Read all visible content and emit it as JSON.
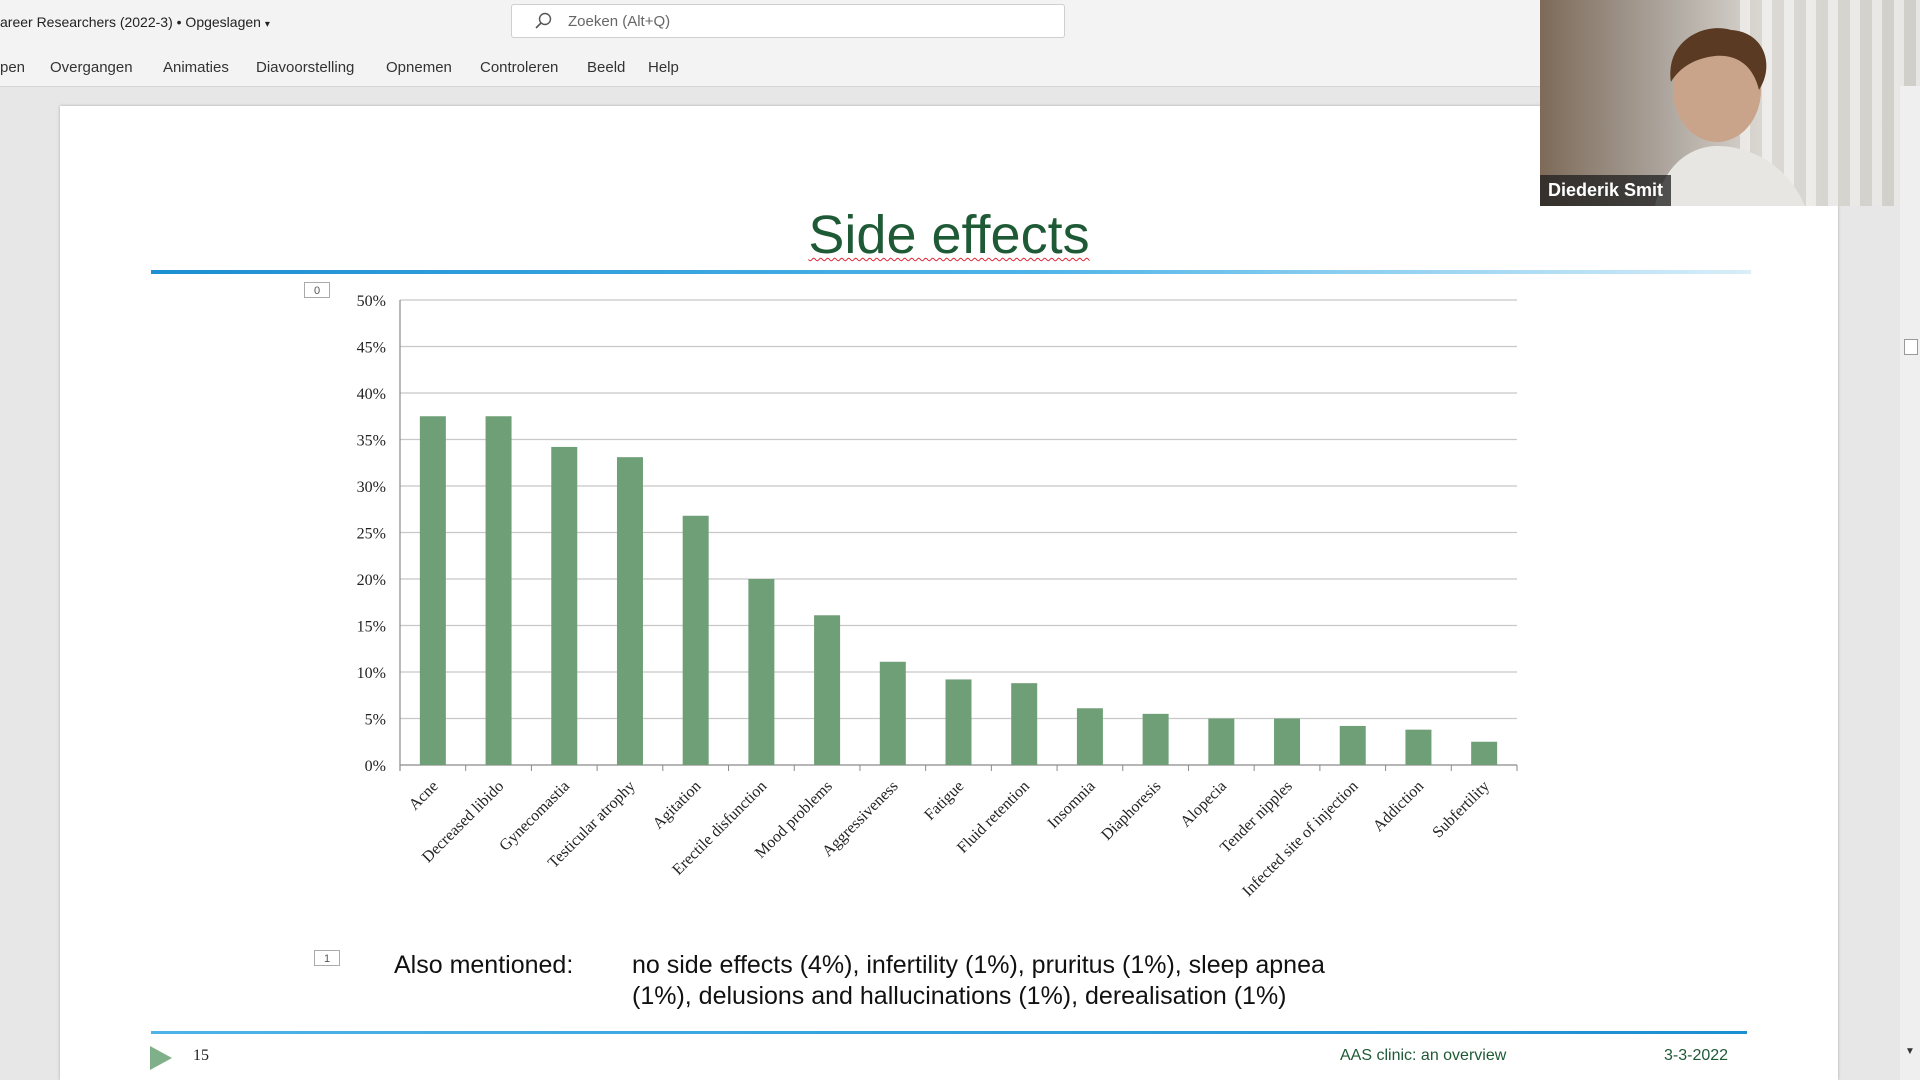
{
  "app": {
    "doc_title": "areer Researchers (2022-3) • Opgeslagen",
    "search_placeholder": "Zoeken (Alt+Q)",
    "tabs": [
      "pen",
      "Overgangen",
      "Animaties",
      "Diavoorstelling",
      "Opnemen",
      "Controleren",
      "Beeld",
      "Help"
    ]
  },
  "slide": {
    "title": "Side effects",
    "marker0": "0",
    "marker1": "1",
    "also_label": "Also mentioned:",
    "also_line1": "no side effects (4%), infertility (1%), pruritus (1%), sleep apnea",
    "also_line2": "(1%),  delusions and hallucinations (1%), derealisation (1%)",
    "number": "15",
    "footer": "AAS clinic: an overview",
    "date": "3-3-2022"
  },
  "webcam": {
    "name": "Diederik Smit"
  },
  "colors": {
    "bar": "#6f9f77",
    "title": "#1f5a36",
    "rule": "#1c8fd2"
  },
  "chart_data": {
    "type": "bar",
    "categories": [
      "Acne",
      "Decreased libido",
      "Gynecomastia",
      "Testicular atrophy",
      "Agitation",
      "Erectile disfunction",
      "Mood problems",
      "Aggressiveness",
      "Fatigue",
      "Fluid retention",
      "Insomnia",
      "Diaphoresis",
      "Alopecia",
      "Tender nipples",
      "Infected site of injection",
      "Addiction",
      "Subfertility"
    ],
    "values": [
      37.5,
      37.5,
      34.2,
      33.1,
      26.8,
      20.0,
      16.1,
      11.1,
      9.2,
      8.8,
      6.1,
      5.5,
      5.0,
      5.0,
      4.2,
      3.8,
      2.5
    ],
    "yticks": [
      "0%",
      "5%",
      "10%",
      "15%",
      "20%",
      "25%",
      "30%",
      "35%",
      "40%",
      "45%",
      "50%"
    ],
    "ylim": [
      0,
      50
    ],
    "grid": true,
    "title": "",
    "xlabel": "",
    "ylabel": ""
  }
}
